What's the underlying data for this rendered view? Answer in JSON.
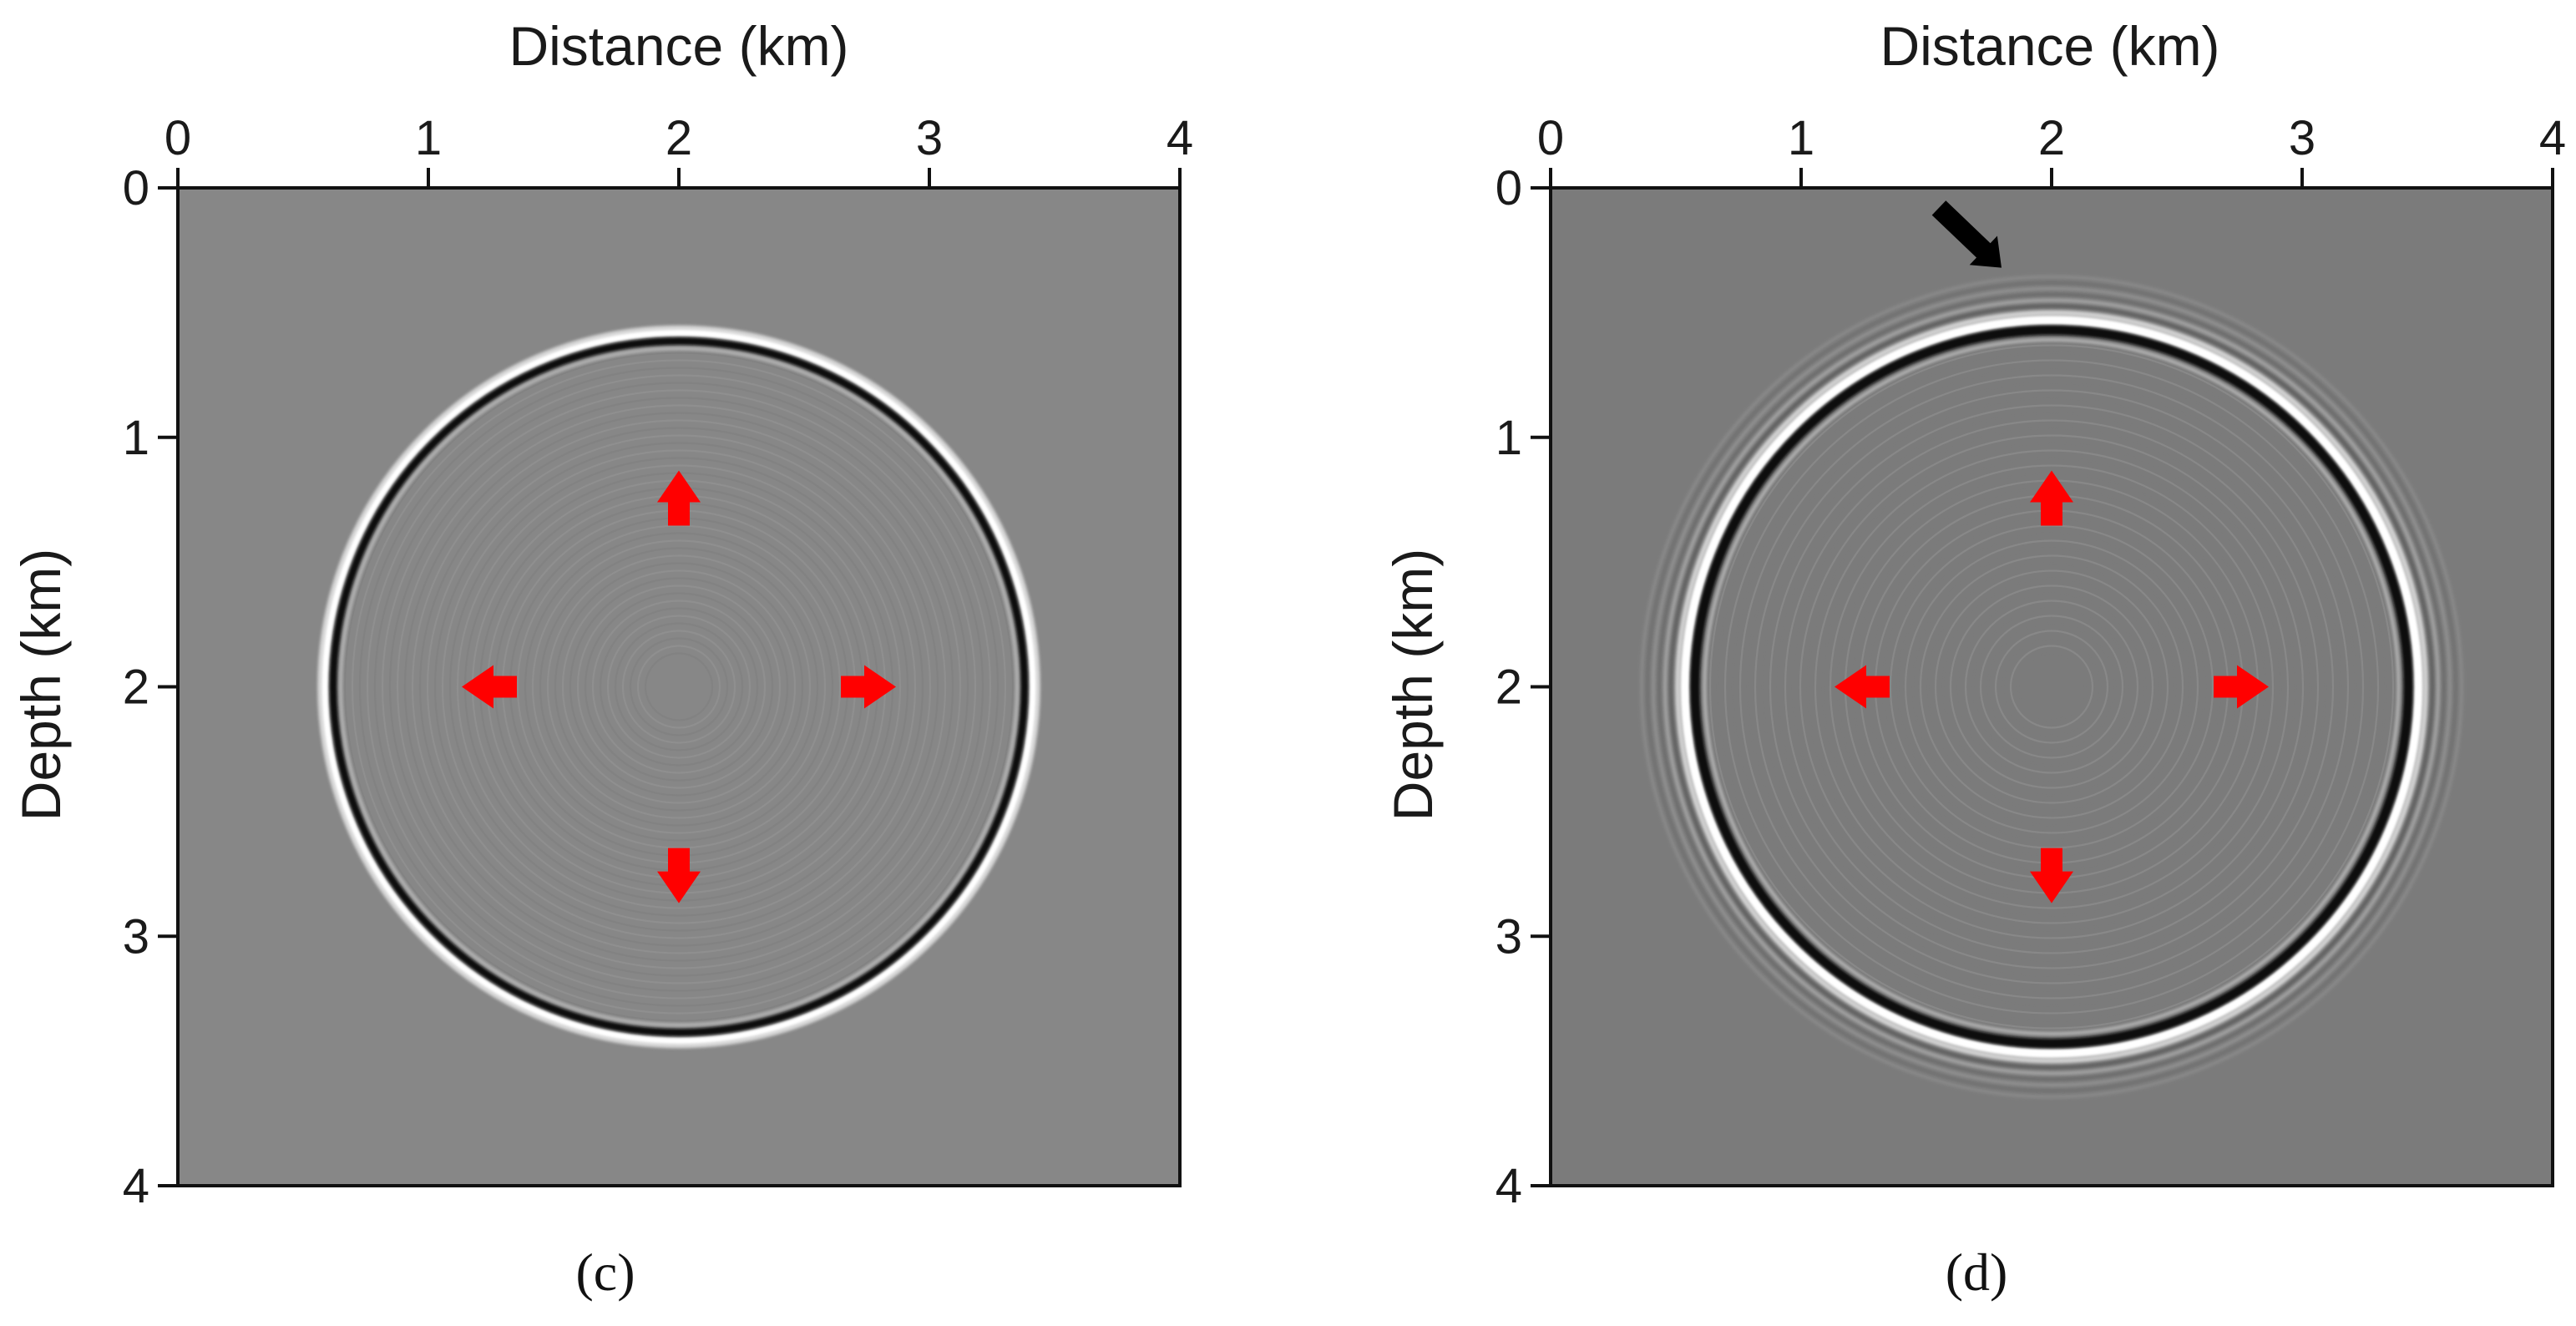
{
  "figure": {
    "panels": [
      {
        "id": "c",
        "caption": "(c)",
        "background": "#878787",
        "arrow_color": "#ff0000",
        "chart_data": {
          "type": "image",
          "xlabel": "Distance (km)",
          "ylabel": "Depth (km)",
          "xlim": [
            0,
            4
          ],
          "ylim": [
            0,
            4
          ],
          "x_ticks": [
            "0",
            "1",
            "2",
            "3",
            "4"
          ],
          "y_ticks": [
            "0",
            "1",
            "2",
            "3",
            "4"
          ],
          "x_axis_position": "top",
          "y_inverted": true,
          "wavefront": {
            "center": [
              2,
              2
            ],
            "radius_km": 1.4,
            "extra_rings": 0
          },
          "red_arrows": [
            {
              "direction": "up",
              "at": [
                2,
                1.25
              ]
            },
            {
              "direction": "down",
              "at": [
                2,
                2.75
              ]
            },
            {
              "direction": "left",
              "at": [
                1.25,
                2
              ]
            },
            {
              "direction": "right",
              "at": [
                2.75,
                2
              ]
            }
          ]
        }
      },
      {
        "id": "d",
        "caption": "(d)",
        "background": "#7b7b7b",
        "arrow_color": "#ff0000",
        "chart_data": {
          "type": "image",
          "xlabel": "Distance (km)",
          "ylabel": "Depth (km)",
          "xlim": [
            0,
            4
          ],
          "ylim": [
            0,
            4
          ],
          "x_ticks": [
            "0",
            "1",
            "2",
            "3",
            "4"
          ],
          "y_ticks": [
            "0",
            "1",
            "2",
            "3",
            "4"
          ],
          "x_axis_position": "top",
          "y_inverted": true,
          "wavefront": {
            "center": [
              2,
              2
            ],
            "radius_km": 1.45,
            "extra_rings": 3
          },
          "red_arrows": [
            {
              "direction": "up",
              "at": [
                2,
                1.25
              ]
            },
            {
              "direction": "down",
              "at": [
                2,
                2.75
              ]
            },
            {
              "direction": "left",
              "at": [
                1.25,
                2
              ]
            },
            {
              "direction": "right",
              "at": [
                2.75,
                2
              ]
            }
          ],
          "black_arrow": {
            "from": [
              1.55,
              0.08
            ],
            "to": [
              1.8,
              0.32
            ]
          }
        }
      }
    ]
  }
}
